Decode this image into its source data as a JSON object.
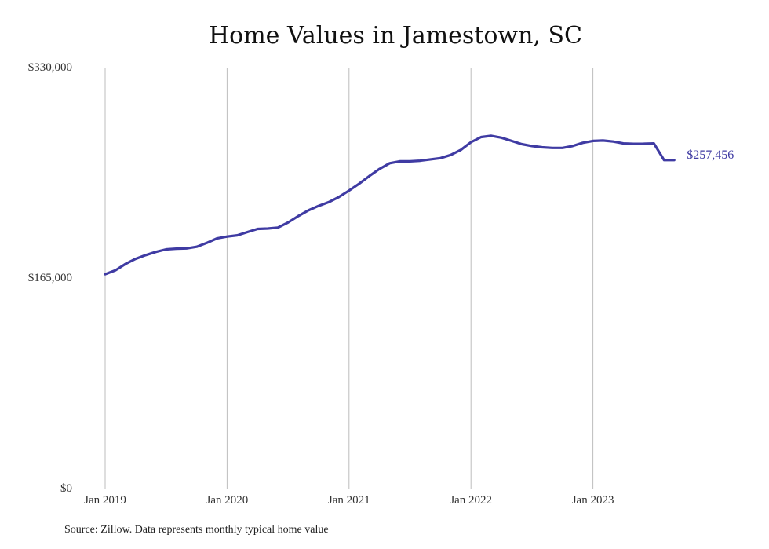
{
  "chart_data": {
    "type": "line",
    "title": "Home Values in Jamestown, SC",
    "xlabel": "",
    "ylabel": "",
    "y_ticks": [
      "$330,000",
      "$165,000",
      "$0"
    ],
    "y_tick_values": [
      330000,
      165000,
      0
    ],
    "ylim": [
      0,
      330000
    ],
    "x_ticks": [
      "Jan 2019",
      "Jan 2020",
      "Jan 2021",
      "Jan 2022",
      "Jan 2023"
    ],
    "x_tick_dates": [
      "2019-01",
      "2020-01",
      "2021-01",
      "2022-01",
      "2023-01"
    ],
    "grid": "vertical",
    "line_color": "#3f3ba3",
    "end_label": "$257,456",
    "series": [
      {
        "x": [
          "2019-01",
          "2019-02",
          "2019-03",
          "2019-04",
          "2019-05",
          "2019-06",
          "2019-07",
          "2019-08",
          "2019-09",
          "2019-10",
          "2019-11",
          "2019-12",
          "2020-01",
          "2020-02",
          "2020-03",
          "2020-04",
          "2020-05",
          "2020-06",
          "2020-07",
          "2020-08",
          "2020-09",
          "2020-10",
          "2020-11",
          "2020-12",
          "2021-01",
          "2021-02",
          "2021-03",
          "2021-04",
          "2021-05",
          "2021-06",
          "2021-07",
          "2021-08",
          "2021-09",
          "2021-10",
          "2021-11",
          "2021-12",
          "2022-01",
          "2022-02",
          "2022-03",
          "2022-04",
          "2022-05",
          "2022-06",
          "2022-07",
          "2022-08",
          "2022-09",
          "2022-10",
          "2022-11",
          "2022-12",
          "2023-01",
          "2023-02",
          "2023-03",
          "2023-04",
          "2023-05",
          "2023-06",
          "2023-07",
          "2023-08",
          "2023-09"
        ],
        "values": [
          168000,
          171000,
          176000,
          180000,
          183000,
          185500,
          187500,
          188000,
          188200,
          189500,
          192500,
          196000,
          197500,
          198500,
          201000,
          203500,
          203800,
          204500,
          208500,
          213500,
          218000,
          221500,
          224500,
          228500,
          233500,
          239000,
          245000,
          250500,
          255000,
          256500,
          256500,
          257000,
          258000,
          259000,
          261500,
          265500,
          271500,
          275500,
          276500,
          275000,
          272500,
          270000,
          268500,
          267500,
          267000,
          267000,
          268500,
          271000,
          272500,
          272800,
          272000,
          270500,
          270200,
          270300,
          270500,
          257456,
          257456
        ]
      }
    ]
  },
  "source_note": "Source: Zillow. Data represents monthly typical home value"
}
